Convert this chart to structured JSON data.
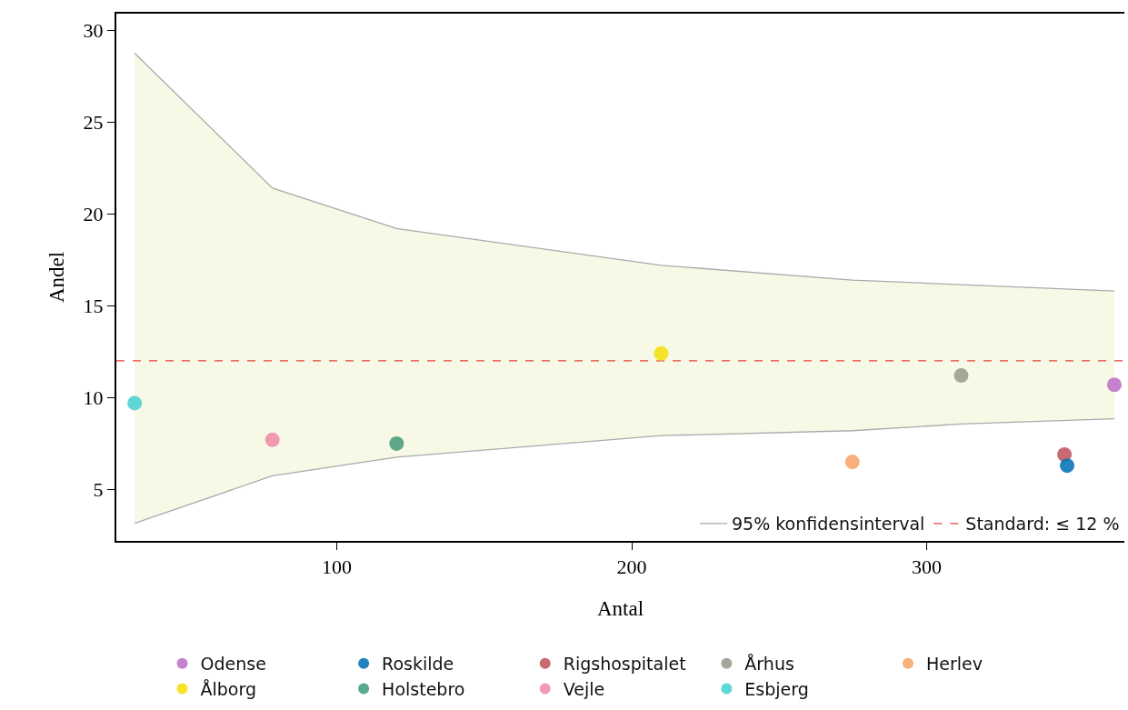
{
  "chart_data": {
    "type": "scatter",
    "xlabel": "Antal",
    "ylabel": "Andel",
    "xlim": [
      25.3,
      367
    ],
    "xticks": [
      100,
      200,
      300
    ],
    "ylim": [
      2.2,
      30.9
    ],
    "yticks": [
      5,
      10,
      15,
      20,
      25,
      30
    ],
    "legend": "bottom",
    "marker": "circle",
    "ref_lines": [
      {
        "axis": "y",
        "value": 12,
        "label": "Standard: ≤ 12 %",
        "color": "#e8413c",
        "line_style": "dashed"
      }
    ],
    "series": [
      {
        "type": "line",
        "name": "95% konfidensinterval",
        "color": "#aaaaaa",
        "marker": "none",
        "x": [
          31.5,
          78.2,
          120.3,
          210,
          274.8,
          311.7,
          363.6
        ],
        "values": [
          28.75,
          21.4,
          19.2,
          17.2,
          16.4,
          16.15,
          15.8
        ],
        "lower": [
          3.16,
          5.74,
          6.76,
          7.93,
          8.2,
          8.56,
          8.85
        ],
        "upper": [
          28.75,
          21.4,
          19.2,
          17.2,
          16.4,
          16.15,
          15.8
        ]
      },
      {
        "type": "line",
        "color": "#aaaaaa",
        "marker": "none",
        "x": [
          31.5,
          78.2,
          120.3,
          210,
          274.8,
          311.7,
          363.6
        ],
        "values": [
          3.16,
          5.74,
          6.76,
          7.93,
          8.2,
          8.56,
          8.85
        ]
      },
      {
        "name": "Esbjerg",
        "color": "#4fd1d1",
        "x": [
          31.5
        ],
        "values": [
          9.7
        ]
      },
      {
        "name": "Vejle",
        "color": "#f08fa8",
        "x": [
          78.2
        ],
        "values": [
          7.7
        ]
      },
      {
        "name": "Holstebro",
        "color": "#4a9e7e",
        "x": [
          120.3
        ],
        "values": [
          7.5
        ]
      },
      {
        "name": "Ålborg",
        "color": "#f5e012",
        "x": [
          210
        ],
        "values": [
          12.4
        ]
      },
      {
        "name": "Herlev",
        "color": "#f7a96b",
        "x": [
          274.8
        ],
        "values": [
          6.5
        ]
      },
      {
        "name": "Århus",
        "color": "#9a9e90",
        "x": [
          311.7
        ],
        "values": [
          11.2
        ]
      },
      {
        "name": "Rigshospitalet",
        "color": "#c25a62",
        "x": [
          346.7
        ],
        "values": [
          6.9
        ]
      },
      {
        "name": "Roskilde",
        "color": "#0a75b8",
        "x": [
          347.6
        ],
        "values": [
          6.3
        ]
      },
      {
        "name": "Odense",
        "color": "#bf73c7",
        "x": [
          363.6
        ],
        "values": [
          10.7
        ]
      }
    ]
  }
}
